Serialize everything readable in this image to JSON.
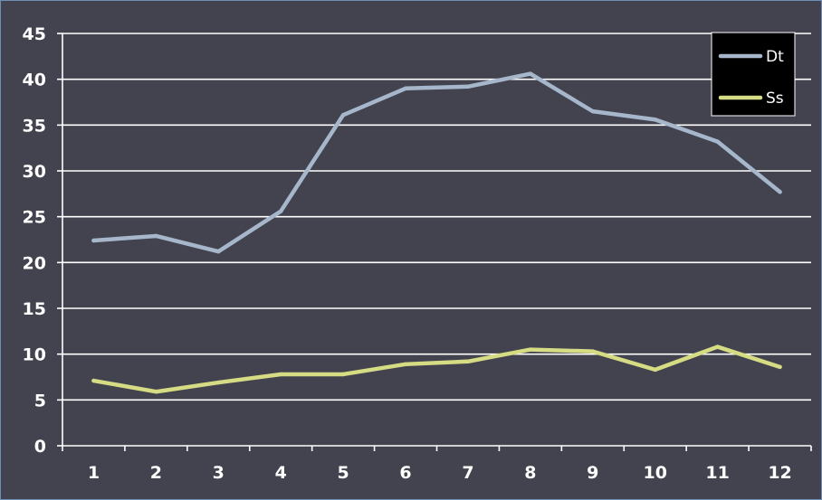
{
  "chart_data": {
    "type": "line",
    "x": [
      1,
      2,
      3,
      4,
      5,
      6,
      7,
      8,
      9,
      10,
      11,
      12
    ],
    "x_tick_labels": [
      "1",
      "2",
      "3",
      "4",
      "5",
      "6",
      "7",
      "8",
      "9",
      "10",
      "11",
      "12"
    ],
    "y_ticks": [
      0,
      5,
      10,
      15,
      20,
      25,
      30,
      35,
      40,
      45
    ],
    "ylim": [
      0,
      45
    ],
    "grid": true,
    "legend_position": "top-right",
    "background_color": "#43434f",
    "series": [
      {
        "name": "Dt",
        "color": "#a6b7cb",
        "values": [
          22.4,
          22.9,
          21.2,
          25.6,
          36.1,
          39.0,
          39.2,
          40.6,
          36.5,
          35.6,
          33.2,
          27.7
        ]
      },
      {
        "name": "Ss",
        "color": "#d6dc83",
        "values": [
          7.1,
          5.9,
          6.9,
          7.8,
          7.8,
          8.9,
          9.2,
          10.5,
          10.3,
          8.3,
          10.8,
          8.6
        ]
      }
    ]
  }
}
